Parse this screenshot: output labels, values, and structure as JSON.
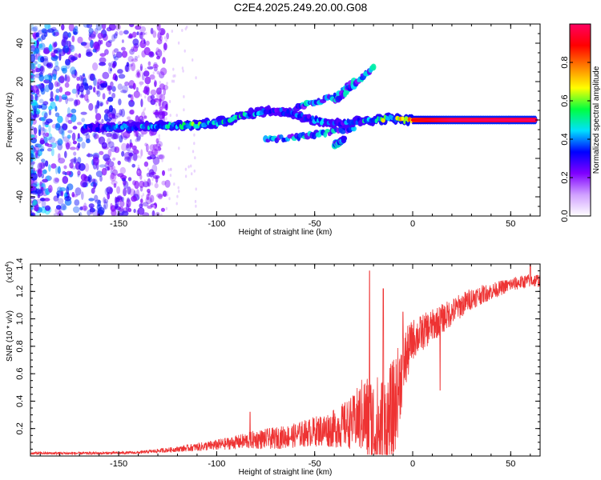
{
  "title": "C2E4.2025.249.20.00.G08",
  "chart_data": [
    {
      "type": "heatmap",
      "name": "spectrogram",
      "xlabel": "Height of straight line (km)",
      "ylabel": "Frequency (Hz)",
      "xlim": [
        -195,
        65
      ],
      "ylim": [
        -50,
        50
      ],
      "xticks": [
        -150,
        -100,
        -50,
        0,
        50
      ],
      "yticks": [
        -40,
        -20,
        0,
        20,
        40
      ],
      "colorbar": {
        "label": "Normalized spectral amplitude",
        "range": [
          0,
          1
        ],
        "ticks": [
          "0.0",
          "0.2",
          "0.4",
          "0.6",
          "0.8"
        ],
        "tick_values": [
          0,
          0.2,
          0.4,
          0.6,
          0.8
        ],
        "colors": [
          "#ffffff",
          "#d0a0ff",
          "#8000ff",
          "#0000ff",
          "#00e0ff",
          "#00ff40",
          "#ffff00",
          "#ff8000",
          "#ff0000",
          "#ff0060"
        ]
      },
      "ridge": [
        {
          "x": -168,
          "y": -4,
          "a": 0.45
        },
        {
          "x": -160,
          "y": -4,
          "a": 0.35
        },
        {
          "x": -150,
          "y": -4,
          "a": 0.5
        },
        {
          "x": -140,
          "y": -3.5,
          "a": 0.5
        },
        {
          "x": -130,
          "y": -3,
          "a": 0.6
        },
        {
          "x": -120,
          "y": -3,
          "a": 0.6
        },
        {
          "x": -110,
          "y": -2.5,
          "a": 0.7
        },
        {
          "x": -100,
          "y": -1.5,
          "a": 0.6
        },
        {
          "x": -90,
          "y": 1,
          "a": 0.6
        },
        {
          "x": -80,
          "y": 4,
          "a": 0.5
        },
        {
          "x": -70,
          "y": 5,
          "a": 0.4
        },
        {
          "x": -60,
          "y": 3,
          "a": 0.45
        },
        {
          "x": -50,
          "y": 0,
          "a": 0.5
        },
        {
          "x": -40,
          "y": -2,
          "a": 0.45
        },
        {
          "x": -30,
          "y": -1,
          "a": 0.5
        },
        {
          "x": -20,
          "y": 0,
          "a": 0.6
        },
        {
          "x": -15,
          "y": 0.5,
          "a": 0.8
        },
        {
          "x": -10,
          "y": 1,
          "a": 0.7
        },
        {
          "x": -5,
          "y": 0,
          "a": 0.85
        },
        {
          "x": 0,
          "y": 0,
          "a": 0.9
        },
        {
          "x": 10,
          "y": 0,
          "a": 0.95
        },
        {
          "x": 20,
          "y": 0,
          "a": 1.0
        },
        {
          "x": 40,
          "y": 0,
          "a": 1.0
        },
        {
          "x": 63,
          "y": 0,
          "a": 1.0
        }
      ],
      "branches": [
        {
          "x": [
            -75,
            -60,
            -45,
            -30
          ],
          "y": [
            -10,
            -9,
            -7,
            -4
          ]
        },
        {
          "x": [
            -60,
            -50,
            -40,
            -30
          ],
          "y": [
            6,
            9,
            12,
            20
          ]
        },
        {
          "x": [
            -40,
            -30,
            -20
          ],
          "y": [
            10,
            18,
            28
          ]
        },
        {
          "x": [
            -40,
            -35
          ],
          "y": [
            -13,
            -10
          ]
        }
      ]
    },
    {
      "type": "line",
      "name": "snr",
      "xlabel": "Height of straight line (km)",
      "ylabel": "SNR (10 * v/v)",
      "multiplier": "(x10",
      "exponent": "4",
      "multiplier_close": ")",
      "xlim": [
        -195,
        65
      ],
      "ylim": [
        0,
        1.4
      ],
      "xticks": [
        -150,
        -100,
        -50,
        0,
        50
      ],
      "yticks": [
        0.2,
        0.4,
        0.6,
        0.8,
        1.0,
        1.2,
        1.4
      ],
      "ytick_labels": [
        "0.2",
        "0.4",
        "0.6",
        "0.8",
        "1.0",
        "1.2",
        "1.4"
      ],
      "color": "#ee3333",
      "envelope": {
        "x": [
          -195,
          -160,
          -140,
          -120,
          -100,
          -90,
          -80,
          -70,
          -60,
          -50,
          -40,
          -30,
          -25,
          -20,
          -15,
          -10,
          -5,
          0,
          10,
          20,
          30,
          40,
          50,
          60,
          65
        ],
        "base": [
          0.02,
          0.02,
          0.025,
          0.05,
          0.08,
          0.1,
          0.12,
          0.13,
          0.15,
          0.18,
          0.2,
          0.25,
          0.3,
          0.2,
          0.15,
          0.3,
          0.65,
          0.85,
          0.95,
          1.05,
          1.15,
          1.2,
          1.25,
          1.28,
          1.28
        ],
        "noise": [
          0.01,
          0.01,
          0.01,
          0.02,
          0.04,
          0.05,
          0.07,
          0.08,
          0.09,
          0.11,
          0.14,
          0.2,
          0.3,
          0.4,
          0.45,
          0.4,
          0.25,
          0.15,
          0.12,
          0.1,
          0.08,
          0.06,
          0.05,
          0.05,
          0.05
        ]
      },
      "peaks": [
        {
          "x": -83,
          "y": 0.32
        },
        {
          "x": -22,
          "y": 1.35
        },
        {
          "x": -15,
          "y": 1.22
        },
        {
          "x": -5,
          "y": 1.05
        },
        {
          "x": 14,
          "y": 0.48
        },
        {
          "x": 60,
          "y": 1.4
        }
      ]
    }
  ]
}
